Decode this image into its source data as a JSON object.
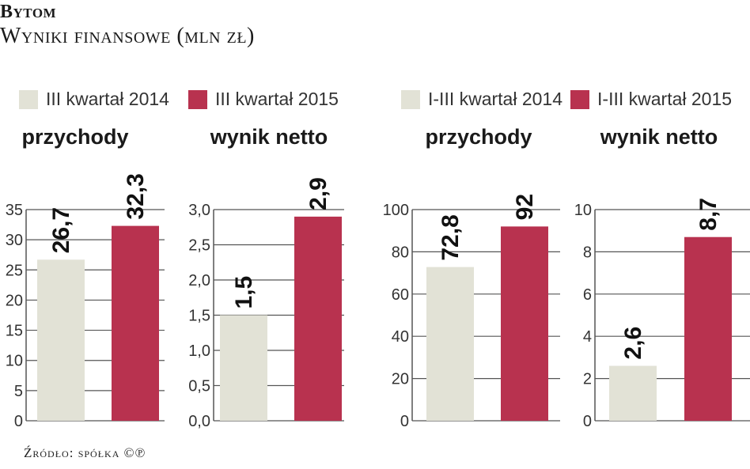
{
  "header": {
    "title": "Bytom",
    "subtitle": "Wyniki finansowe (mln zł)"
  },
  "legend_left": [
    {
      "label": "III kwartał 2014",
      "color": "#e2e2d6"
    },
    {
      "label": "III kwartał 2015",
      "color": "#b8324f"
    }
  ],
  "legend_right": [
    {
      "label": "I-III kwartał 2014",
      "color": "#e2e2d6"
    },
    {
      "label": "I-III kwartał 2015",
      "color": "#b8324f"
    }
  ],
  "source": "Źródło: spółka ©℗",
  "colors": {
    "gray": "#e2e2d6",
    "red": "#b8324f",
    "axis": "#555555"
  },
  "chart_data": [
    {
      "type": "bar",
      "title": "przychody",
      "series": [
        {
          "name": "III kwartał 2014",
          "values": [
            26.7
          ],
          "labels": [
            "26,7"
          ]
        },
        {
          "name": "III kwartał 2015",
          "values": [
            32.3
          ],
          "labels": [
            "32,3"
          ]
        }
      ],
      "ylim": [
        0,
        35
      ],
      "yticks": [
        "0",
        "5",
        "10",
        "15",
        "20",
        "25",
        "30",
        "35"
      ],
      "ytick_values": [
        0,
        5,
        10,
        15,
        20,
        25,
        30,
        35
      ]
    },
    {
      "type": "bar",
      "title": "wynik netto",
      "series": [
        {
          "name": "III kwartał 2014",
          "values": [
            1.5
          ],
          "labels": [
            "1,5"
          ]
        },
        {
          "name": "III kwartał 2015",
          "values": [
            2.9
          ],
          "labels": [
            "2,9"
          ]
        }
      ],
      "ylim": [
        0,
        3
      ],
      "yticks": [
        "0,0",
        "0,5",
        "1,0",
        "1,5",
        "2,0",
        "2,5",
        "3,0"
      ],
      "ytick_values": [
        0,
        0.5,
        1,
        1.5,
        2,
        2.5,
        3
      ]
    },
    {
      "type": "bar",
      "title": "przychody",
      "series": [
        {
          "name": "I-III kwartał 2014",
          "values": [
            72.8
          ],
          "labels": [
            "72,8"
          ]
        },
        {
          "name": "I-III kwartał 2015",
          "values": [
            92
          ],
          "labels": [
            "92"
          ]
        }
      ],
      "ylim": [
        0,
        100
      ],
      "yticks": [
        "0",
        "20",
        "40",
        "60",
        "80",
        "100"
      ],
      "ytick_values": [
        0,
        20,
        40,
        60,
        80,
        100
      ]
    },
    {
      "type": "bar",
      "title": "wynik netto",
      "series": [
        {
          "name": "I-III kwartał 2014",
          "values": [
            2.6
          ],
          "labels": [
            "2,6"
          ]
        },
        {
          "name": "I-III kwartał 2015",
          "values": [
            8.7
          ],
          "labels": [
            "8,7"
          ]
        }
      ],
      "ylim": [
        0,
        10
      ],
      "yticks": [
        "0",
        "2",
        "4",
        "6",
        "8",
        "10"
      ],
      "ytick_values": [
        0,
        2,
        4,
        6,
        8,
        10
      ]
    }
  ]
}
